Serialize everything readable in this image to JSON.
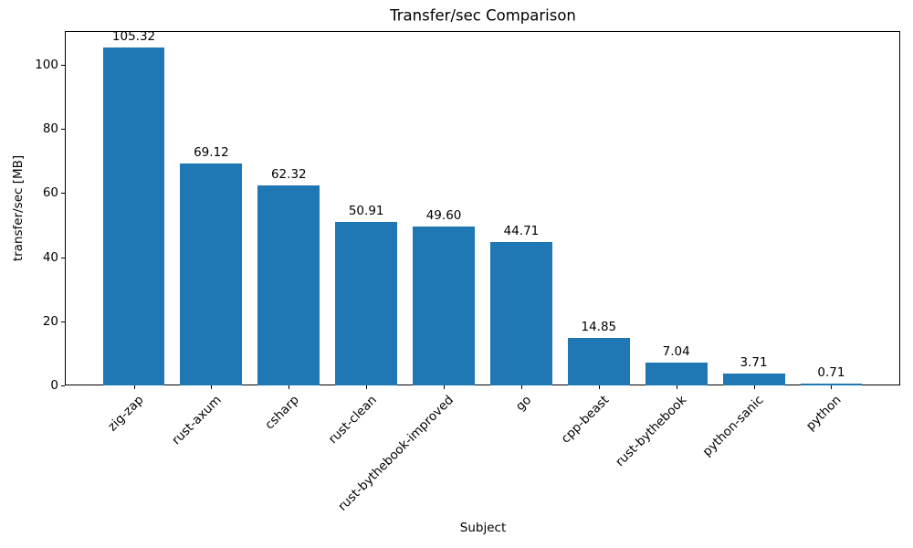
{
  "chart_data": {
    "type": "bar",
    "title": "Transfer/sec Comparison",
    "xlabel": "Subject",
    "ylabel": "transfer/sec [MB]",
    "categories": [
      "zig-zap",
      "rust-axum",
      "csharp",
      "rust-clean",
      "rust-bythebook-improved",
      "go",
      "cpp-beast",
      "rust-bythebook",
      "python-sanic",
      "python"
    ],
    "values": [
      105.32,
      69.12,
      62.32,
      50.91,
      49.6,
      44.71,
      14.85,
      7.04,
      3.71,
      0.71
    ],
    "value_labels": [
      "105.32",
      "69.12",
      "62.32",
      "50.91",
      "49.60",
      "44.71",
      "14.85",
      "7.04",
      "3.71",
      "0.71"
    ],
    "yticks": [
      0,
      20,
      40,
      60,
      80,
      100
    ],
    "ytick_labels": [
      "0",
      "20",
      "40",
      "60",
      "80",
      "100"
    ],
    "ylim": [
      0,
      110.59
    ],
    "bar_color": "#1f77b4",
    "grid": false,
    "legend_position": "none"
  }
}
